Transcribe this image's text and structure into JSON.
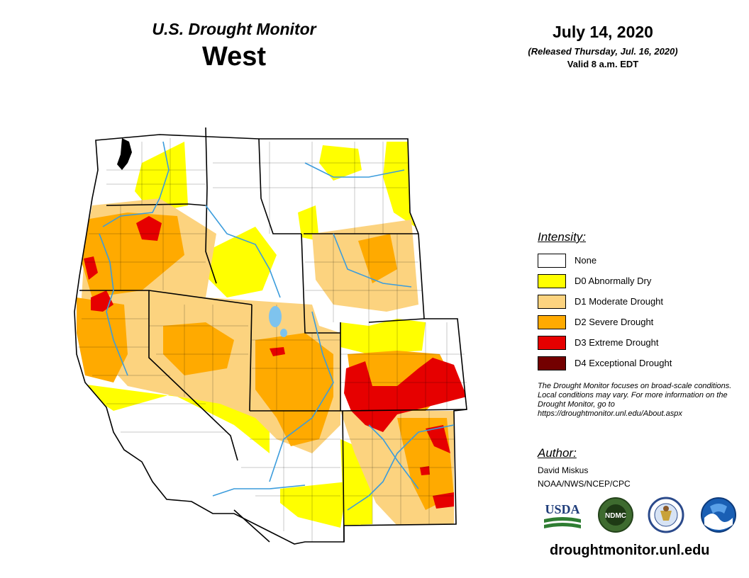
{
  "header": {
    "monitor_title": "U.S. Drought Monitor",
    "region": "West",
    "date": "July 14, 2020",
    "released": "(Released Thursday, Jul. 16, 2020)",
    "valid": "Valid 8 a.m. EDT"
  },
  "legend": {
    "title": "Intensity:",
    "items": [
      {
        "label": "None",
        "color": "#ffffff"
      },
      {
        "label": "D0 Abnormally Dry",
        "color": "#ffff00"
      },
      {
        "label": "D1 Moderate Drought",
        "color": "#fcd37f"
      },
      {
        "label": "D2 Severe Drought",
        "color": "#ffaa00"
      },
      {
        "label": "D3 Extreme Drought",
        "color": "#e60000"
      },
      {
        "label": "D4 Exceptional Drought",
        "color": "#730000"
      }
    ]
  },
  "note": "The Drought Monitor focuses on broad-scale conditions. Local conditions may vary. For more information on the Drought Monitor, go to https://droughtmonitor.unl.edu/About.aspx",
  "author": {
    "title": "Author:",
    "name": "David Miskus",
    "org": "NOAA/NWS/NCEP/CPC"
  },
  "logos": {
    "usda": "USDA",
    "ndmc": "NDMC"
  },
  "url": "droughtmonitor.unl.edu"
}
